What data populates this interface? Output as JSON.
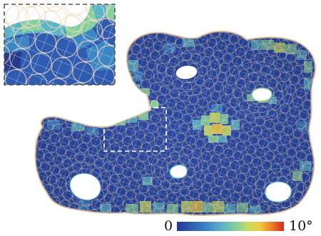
{
  "colors": {
    "scale": [
      "#263a8e",
      "#2f5bb0",
      "#3d86c4",
      "#5db3c6",
      "#86cf9e",
      "#c9dc62",
      "#f0c83c",
      "#ee7a2c",
      "#d12a20"
    ],
    "surface_base": "#2b49a0",
    "circle_stroke": "#e8c9a6",
    "inset_frame": "#555555",
    "zoom_box": "#ffffff"
  },
  "colorbar": {
    "min_label": "0",
    "max_label": "10°"
  }
}
